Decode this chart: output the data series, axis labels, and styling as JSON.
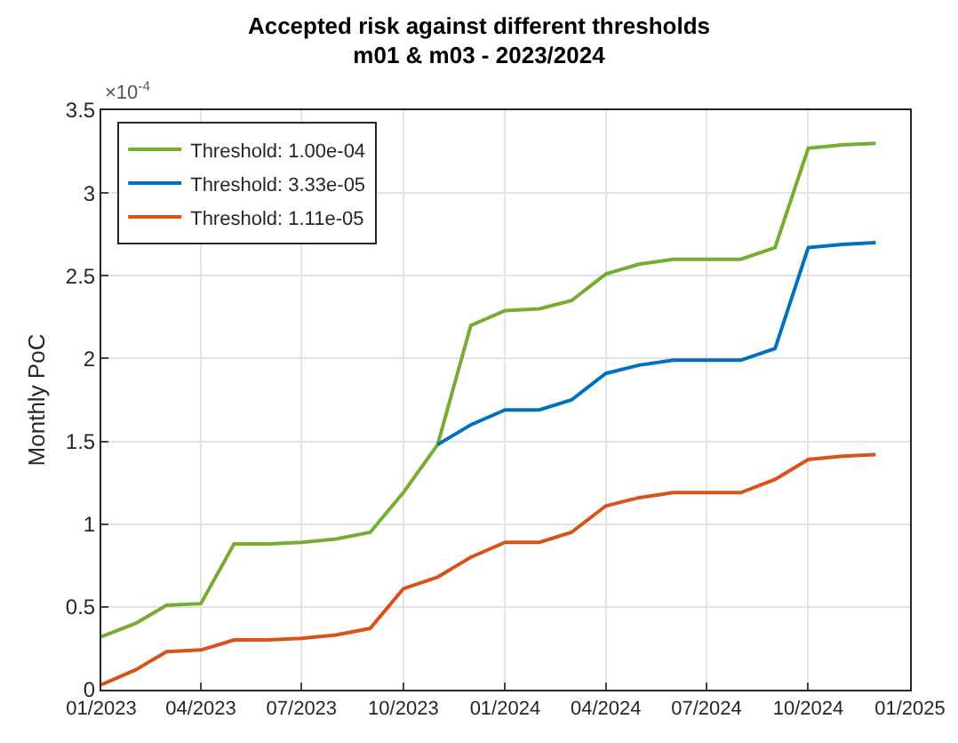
{
  "chart_data": {
    "type": "line",
    "title": "Accepted risk against different thresholds\nm01 & m03 - 2023/2024",
    "ylabel": "Monthly PoC",
    "annotations": [
      "×10$^{-4}$"
    ],
    "x": [
      "2023-01",
      "2023-02",
      "2023-03",
      "2023-04",
      "2023-05",
      "2023-06",
      "2023-07",
      "2023-08",
      "2023-09",
      "2023-10",
      "2023-11",
      "2023-12",
      "2024-01",
      "2024-02",
      "2024-03",
      "2024-04",
      "2024-05",
      "2024-06",
      "2024-07",
      "2024-08",
      "2024-09",
      "2024-10",
      "2024-11",
      "2024-12"
    ],
    "series": [
      {
        "name": "Threshold: 1.00e-04",
        "color": "#77ac30",
        "values": [
          0.32,
          0.4,
          0.51,
          0.52,
          0.88,
          0.88,
          0.89,
          0.91,
          0.95,
          1.19,
          1.48,
          2.2,
          2.29,
          2.3,
          2.35,
          2.51,
          2.57,
          2.6,
          2.6,
          2.6,
          2.67,
          3.27,
          3.29,
          3.3
        ]
      },
      {
        "name": "Threshold: 3.33e-05",
        "color": "#0072bd",
        "values": [
          null,
          null,
          null,
          null,
          null,
          null,
          null,
          null,
          null,
          null,
          1.48,
          1.6,
          1.69,
          1.69,
          1.75,
          1.91,
          1.96,
          1.99,
          1.99,
          1.99,
          2.06,
          2.67,
          2.69,
          2.7
        ]
      },
      {
        "name": "Threshold: 1.11e-05",
        "color": "#d95319",
        "values": [
          0.03,
          0.12,
          0.23,
          0.24,
          0.3,
          0.3,
          0.31,
          0.33,
          0.37,
          0.61,
          0.68,
          0.8,
          0.89,
          0.89,
          0.95,
          1.11,
          1.16,
          1.19,
          1.19,
          1.19,
          1.27,
          1.39,
          1.41,
          1.42
        ]
      }
    ],
    "xlim": [
      "2023-01",
      "2025-01"
    ],
    "xticks": [
      {
        "value": "2023-01",
        "label": "01/2023"
      },
      {
        "value": "2023-04",
        "label": "04/2023"
      },
      {
        "value": "2023-07",
        "label": "07/2023"
      },
      {
        "value": "2023-10",
        "label": "10/2023"
      },
      {
        "value": "2024-01",
        "label": "01/2024"
      },
      {
        "value": "2024-04",
        "label": "04/2024"
      },
      {
        "value": "2024-07",
        "label": "07/2024"
      },
      {
        "value": "2024-10",
        "label": "10/2024"
      },
      {
        "value": "2025-01",
        "label": "01/2025"
      }
    ],
    "ylim": [
      0,
      3.5
    ],
    "yticks": [
      0,
      0.5,
      1,
      1.5,
      2,
      2.5,
      3,
      3.5
    ],
    "grid": true,
    "legend": "top left",
    "line_style": "solid",
    "marker": "none"
  }
}
